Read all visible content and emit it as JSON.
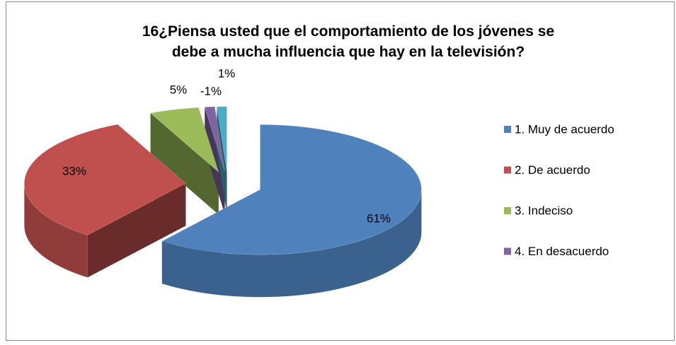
{
  "chart_data": {
    "type": "pie3d",
    "title": "16¿Piensa usted que el comportamiento de los jóvenes se debe a mucha influencia que hay en la televisión?",
    "categories": [
      "1. Muy de acuerdo",
      "2. De acuerdo",
      "3. Indeciso",
      "4. En desacuerdo",
      null
    ],
    "values": [
      61,
      33,
      5,
      -1,
      1
    ],
    "value_labels": [
      "61%",
      "33%",
      "5%",
      "-1%",
      "1%"
    ],
    "colors": [
      "#4f81bd",
      "#c0504d",
      "#9bbb59",
      "#8064a2",
      "#4bacc6"
    ],
    "legend": "right"
  }
}
